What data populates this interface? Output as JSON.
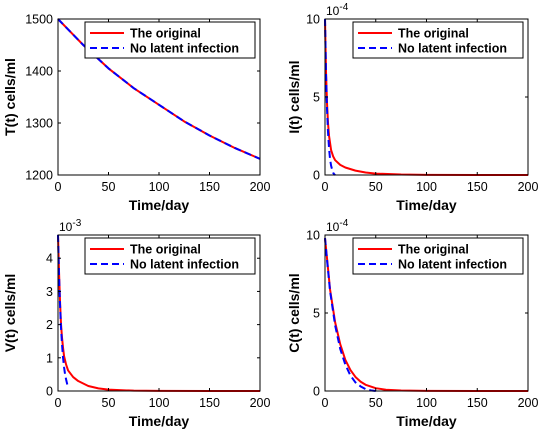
{
  "legend": {
    "entries": [
      {
        "label": "The original",
        "color": "#ff0000",
        "dash": "solid"
      },
      {
        "label": "No latent infection",
        "color": "#0000ff",
        "dash": "dashed"
      }
    ]
  },
  "chart_data": [
    {
      "type": "line",
      "xlabel": "Time/day",
      "ylabel": "T(t) cells/ml",
      "xlim": [
        0,
        200
      ],
      "ylim": [
        1200,
        1500
      ],
      "xticks": [
        0,
        50,
        100,
        150,
        200
      ],
      "yticks": [
        1200,
        1300,
        1400,
        1500
      ],
      "multiplier": "",
      "legend_position": "top-right",
      "series": [
        {
          "name": "The original",
          "color": "#ff0000",
          "dash": "solid",
          "x": [
            0,
            10,
            25,
            50,
            75,
            100,
            125,
            150,
            175,
            200
          ],
          "y": [
            1500,
            1480,
            1450,
            1405,
            1367,
            1335,
            1303,
            1276,
            1252,
            1231
          ]
        },
        {
          "name": "No latent infection",
          "color": "#0000ff",
          "dash": "dashed",
          "x": [
            0,
            10,
            25,
            50,
            75,
            100,
            125,
            150,
            175,
            200
          ],
          "y": [
            1500,
            1480,
            1450,
            1405,
            1367,
            1335,
            1303,
            1276,
            1252,
            1231
          ]
        }
      ]
    },
    {
      "type": "line",
      "xlabel": "Time/day",
      "ylabel": "I(t) cells/ml",
      "xlim": [
        0,
        200
      ],
      "ylim": [
        0,
        10
      ],
      "xticks": [
        0,
        50,
        100,
        150,
        200
      ],
      "yticks": [
        0,
        5,
        10
      ],
      "multiplier": "10",
      "multiplier_exp": "-4",
      "legend_position": "top-right",
      "series": [
        {
          "name": "The original",
          "color": "#ff0000",
          "dash": "solid",
          "x": [
            0,
            1,
            2,
            3,
            4,
            6,
            8,
            10,
            15,
            20,
            30,
            40,
            50,
            75,
            100,
            150,
            200
          ],
          "y": [
            10,
            6.6,
            4.6,
            3.3,
            2.5,
            1.6,
            1.2,
            0.95,
            0.65,
            0.48,
            0.28,
            0.16,
            0.09,
            0.03,
            0.01,
            0.002,
            0
          ]
        },
        {
          "name": "No latent infection",
          "color": "#0000ff",
          "dash": "dashed",
          "x": [
            0,
            1,
            2,
            3,
            4,
            5,
            6,
            7,
            8,
            9,
            10
          ],
          "y": [
            10,
            6.5,
            4.2,
            2.7,
            1.7,
            1.0,
            0.6,
            0.35,
            0.15,
            0.05,
            0
          ]
        }
      ]
    },
    {
      "type": "line",
      "xlabel": "Time/day",
      "ylabel": "V(t) cells/ml",
      "xlim": [
        0,
        200
      ],
      "ylim": [
        0,
        4.7
      ],
      "xticks": [
        0,
        50,
        100,
        150,
        200
      ],
      "yticks": [
        0,
        1,
        2,
        3,
        4
      ],
      "multiplier": "10",
      "multiplier_exp": "-3",
      "legend_position": "top-right",
      "series": [
        {
          "name": "The original",
          "color": "#ff0000",
          "dash": "solid",
          "x": [
            0,
            1,
            2,
            3,
            4,
            5,
            6,
            8,
            10,
            15,
            20,
            30,
            40,
            50,
            75,
            100,
            150,
            200
          ],
          "y": [
            4.7,
            3.6,
            2.7,
            2.0,
            1.6,
            1.3,
            1.05,
            0.8,
            0.62,
            0.42,
            0.3,
            0.15,
            0.08,
            0.04,
            0.01,
            0.003,
            0,
            0
          ]
        },
        {
          "name": "No latent infection",
          "color": "#0000ff",
          "dash": "dashed",
          "x": [
            0,
            1,
            2,
            3,
            4,
            5,
            6,
            7,
            8,
            9,
            10
          ],
          "y": [
            4.7,
            3.5,
            2.6,
            1.9,
            1.4,
            1.0,
            0.72,
            0.5,
            0.35,
            0.22,
            0.1
          ]
        }
      ]
    },
    {
      "type": "line",
      "xlabel": "Time/day",
      "ylabel": "C(t) cells/ml",
      "xlim": [
        0,
        200
      ],
      "ylim": [
        0,
        10
      ],
      "xticks": [
        0,
        50,
        100,
        150,
        200
      ],
      "yticks": [
        0,
        5,
        10
      ],
      "multiplier": "10",
      "multiplier_exp": "-4",
      "legend_position": "top-right",
      "series": [
        {
          "name": "The original",
          "color": "#ff0000",
          "dash": "solid",
          "x": [
            0,
            2,
            5,
            10,
            15,
            20,
            25,
            30,
            35,
            40,
            50,
            60,
            75,
            100,
            150,
            200
          ],
          "y": [
            9.8,
            8.5,
            6.5,
            4.4,
            3.0,
            2.0,
            1.35,
            0.9,
            0.6,
            0.4,
            0.18,
            0.08,
            0.03,
            0.005,
            0,
            0
          ]
        },
        {
          "name": "No latent infection",
          "color": "#0000ff",
          "dash": "dashed",
          "x": [
            0,
            2,
            5,
            10,
            15,
            20,
            25,
            30,
            35,
            40,
            45,
            50
          ],
          "y": [
            9.8,
            8.4,
            6.4,
            4.2,
            2.7,
            1.7,
            1.0,
            0.55,
            0.3,
            0.12,
            0.04,
            0
          ]
        }
      ]
    }
  ]
}
